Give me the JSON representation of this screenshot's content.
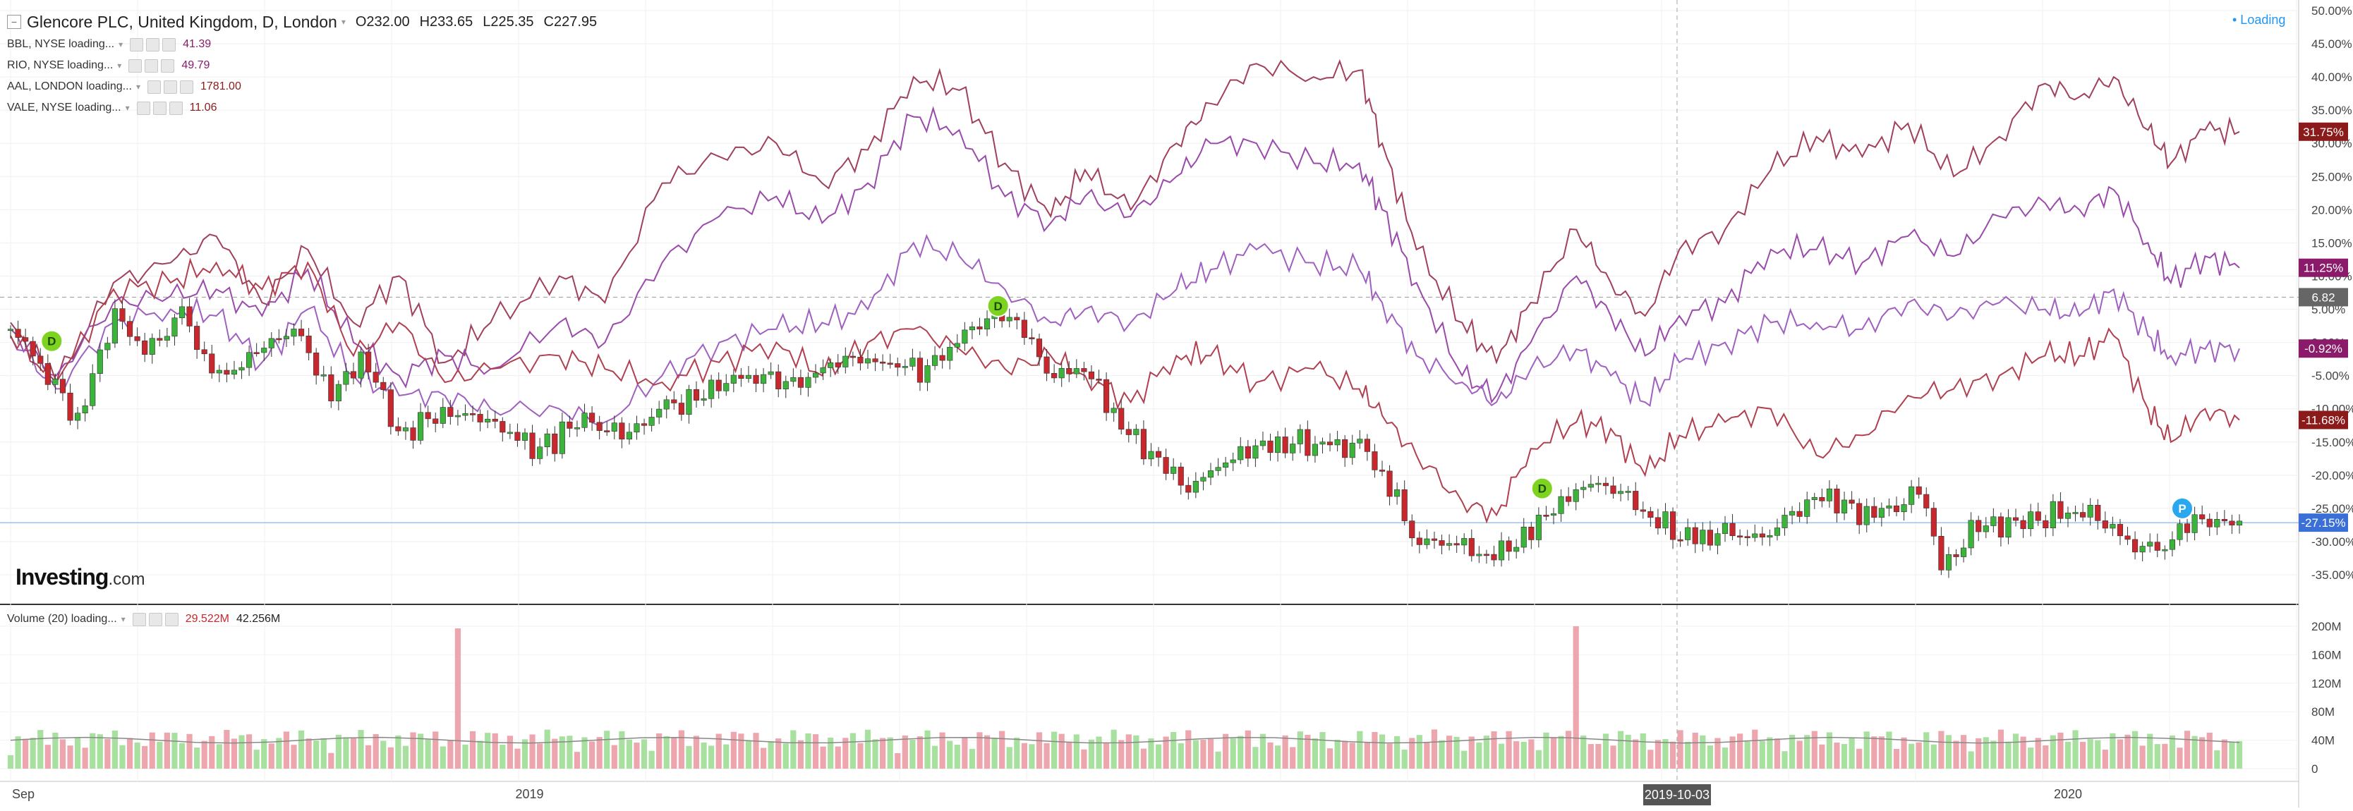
{
  "main_legend": {
    "symbol": "Glencore PLC, United Kingdom, D, London",
    "open": "232.00",
    "high": "233.65",
    "low": "225.35",
    "close": "227.95",
    "open_label": "O",
    "high_label": "H",
    "low_label": "L",
    "close_label": "C"
  },
  "compare_legend": [
    {
      "label": "BBL, NYSE loading...",
      "value": "41.39",
      "color": "#8b1a4a"
    },
    {
      "label": "RIO, NYSE loading...",
      "value": "49.79",
      "color": "#8b1a6a"
    },
    {
      "label": "AAL, LONDON loading...",
      "value": "1781.00",
      "color": "#8b1a1a"
    },
    {
      "label": "VALE, NYSE loading...",
      "value": "11.06",
      "color": "#8b1a1a"
    }
  ],
  "volume_legend": {
    "label": "Volume (20) loading...",
    "value1": "29.522M",
    "value2": "42.256M"
  },
  "status": "• Loading",
  "brand": {
    "name": "Investing",
    "suffix": ".com"
  },
  "chart_data": {
    "type": "line",
    "y_axis": {
      "ticks": [
        "50.00%",
        "45.00%",
        "40.00%",
        "35.00%",
        "30.00%",
        "25.00%",
        "20.00%",
        "15.00%",
        "10.00%",
        "5.00%",
        "0.00%",
        "-5.00%",
        "-10.00%",
        "-15.00%",
        "-20.00%",
        "-25.00%",
        "-30.00%",
        "-35.00%"
      ],
      "values": [
        50,
        45,
        40,
        35,
        30,
        25,
        20,
        15,
        10,
        5,
        0,
        -5,
        -10,
        -15,
        -20,
        -25,
        -30,
        -35
      ]
    },
    "x_axis": {
      "ticks": [
        "Sep",
        "2019",
        "2019-10-03",
        "2020"
      ],
      "tick_x": [
        0.0,
        0.227,
        0.729,
        0.9
      ]
    },
    "series": [
      {
        "key": "aal",
        "color": "#a0405a",
        "last": "31.75%",
        "last_value": 31.75,
        "label_bg": "#8b1a1a",
        "points": [
          [
            0,
            3
          ],
          [
            0.02,
            -6
          ],
          [
            0.045,
            9
          ],
          [
            0.07,
            12
          ],
          [
            0.09,
            16
          ],
          [
            0.11,
            6
          ],
          [
            0.13,
            14
          ],
          [
            0.15,
            3
          ],
          [
            0.17,
            10
          ],
          [
            0.19,
            -3
          ],
          [
            0.21,
            3
          ],
          [
            0.24,
            10
          ],
          [
            0.26,
            6
          ],
          [
            0.285,
            24
          ],
          [
            0.31,
            28
          ],
          [
            0.335,
            30
          ],
          [
            0.355,
            24
          ],
          [
            0.375,
            29
          ],
          [
            0.395,
            40
          ],
          [
            0.415,
            38
          ],
          [
            0.435,
            27
          ],
          [
            0.455,
            19
          ],
          [
            0.47,
            26
          ],
          [
            0.49,
            20
          ],
          [
            0.51,
            30
          ],
          [
            0.525,
            36
          ],
          [
            0.545,
            42
          ],
          [
            0.57,
            40
          ],
          [
            0.59,
            41
          ],
          [
            0.6,
            30
          ],
          [
            0.615,
            14
          ],
          [
            0.635,
            3
          ],
          [
            0.65,
            -3
          ],
          [
            0.665,
            6
          ],
          [
            0.685,
            17
          ],
          [
            0.7,
            9
          ],
          [
            0.715,
            4
          ],
          [
            0.73,
            14
          ],
          [
            0.75,
            17
          ],
          [
            0.77,
            26
          ],
          [
            0.79,
            31
          ],
          [
            0.81,
            28
          ],
          [
            0.83,
            33
          ],
          [
            0.85,
            25
          ],
          [
            0.87,
            31
          ],
          [
            0.89,
            39
          ],
          [
            0.905,
            37
          ],
          [
            0.92,
            40
          ],
          [
            0.935,
            32
          ],
          [
            0.945,
            27
          ],
          [
            0.96,
            32
          ],
          [
            0.975,
            31.75
          ]
        ]
      },
      {
        "key": "rio",
        "color": "#9a4aaa",
        "last": "11.25%",
        "last_value": 11.25,
        "label_bg": "#8b1a6a",
        "points": [
          [
            0,
            2
          ],
          [
            0.02,
            -5
          ],
          [
            0.045,
            6
          ],
          [
            0.07,
            7
          ],
          [
            0.09,
            8
          ],
          [
            0.11,
            4
          ],
          [
            0.13,
            11
          ],
          [
            0.15,
            0
          ],
          [
            0.17,
            -5
          ],
          [
            0.19,
            -2
          ],
          [
            0.21,
            -4
          ],
          [
            0.24,
            3
          ],
          [
            0.26,
            0
          ],
          [
            0.285,
            12
          ],
          [
            0.31,
            19
          ],
          [
            0.335,
            22
          ],
          [
            0.355,
            18
          ],
          [
            0.375,
            24
          ],
          [
            0.395,
            34
          ],
          [
            0.415,
            32
          ],
          [
            0.435,
            22
          ],
          [
            0.455,
            18
          ],
          [
            0.47,
            22
          ],
          [
            0.49,
            19
          ],
          [
            0.51,
            25
          ],
          [
            0.525,
            30
          ],
          [
            0.545,
            30
          ],
          [
            0.57,
            27
          ],
          [
            0.59,
            27
          ],
          [
            0.6,
            20
          ],
          [
            0.615,
            9
          ],
          [
            0.635,
            -5
          ],
          [
            0.65,
            -8
          ],
          [
            0.665,
            0
          ],
          [
            0.685,
            10
          ],
          [
            0.7,
            4
          ],
          [
            0.715,
            -2
          ],
          [
            0.73,
            4
          ],
          [
            0.75,
            6
          ],
          [
            0.77,
            14
          ],
          [
            0.79,
            14
          ],
          [
            0.81,
            12
          ],
          [
            0.83,
            16
          ],
          [
            0.85,
            13
          ],
          [
            0.87,
            19
          ],
          [
            0.89,
            21
          ],
          [
            0.905,
            20
          ],
          [
            0.92,
            23
          ],
          [
            0.935,
            15
          ],
          [
            0.945,
            9
          ],
          [
            0.96,
            13
          ],
          [
            0.975,
            11.25
          ]
        ]
      },
      {
        "key": "bbl",
        "color": "#a060c0",
        "last": "-0.92%",
        "last_value": -0.92,
        "label_bg": "#8b1a6a",
        "points": [
          [
            0,
            1
          ],
          [
            0.02,
            -7
          ],
          [
            0.045,
            3
          ],
          [
            0.07,
            5
          ],
          [
            0.09,
            4
          ],
          [
            0.11,
            -3
          ],
          [
            0.13,
            5
          ],
          [
            0.15,
            -5
          ],
          [
            0.17,
            -8
          ],
          [
            0.19,
            -8
          ],
          [
            0.21,
            -10
          ],
          [
            0.24,
            -10
          ],
          [
            0.26,
            -12
          ],
          [
            0.285,
            -5
          ],
          [
            0.31,
            0
          ],
          [
            0.335,
            2
          ],
          [
            0.355,
            3
          ],
          [
            0.375,
            5
          ],
          [
            0.395,
            15
          ],
          [
            0.415,
            13
          ],
          [
            0.435,
            8
          ],
          [
            0.455,
            3
          ],
          [
            0.47,
            5
          ],
          [
            0.49,
            3
          ],
          [
            0.51,
            8
          ],
          [
            0.525,
            11
          ],
          [
            0.545,
            14
          ],
          [
            0.57,
            12
          ],
          [
            0.59,
            11
          ],
          [
            0.6,
            6
          ],
          [
            0.615,
            -2
          ],
          [
            0.635,
            -6
          ],
          [
            0.65,
            -9
          ],
          [
            0.665,
            -4
          ],
          [
            0.685,
            -1
          ],
          [
            0.7,
            -5
          ],
          [
            0.715,
            -9
          ],
          [
            0.73,
            -3
          ],
          [
            0.75,
            0
          ],
          [
            0.77,
            3
          ],
          [
            0.79,
            3
          ],
          [
            0.81,
            2
          ],
          [
            0.83,
            6
          ],
          [
            0.85,
            4
          ],
          [
            0.87,
            6
          ],
          [
            0.89,
            5
          ],
          [
            0.905,
            4
          ],
          [
            0.92,
            8
          ],
          [
            0.935,
            1
          ],
          [
            0.945,
            -2
          ],
          [
            0.96,
            -1
          ],
          [
            0.975,
            -0.92
          ]
        ]
      },
      {
        "key": "vale",
        "color": "#b04050",
        "last": "-11.68%",
        "last_value": -11.68,
        "label_bg": "#8b1a1a",
        "points": [
          [
            0,
            1
          ],
          [
            0.02,
            -6
          ],
          [
            0.045,
            8
          ],
          [
            0.07,
            9
          ],
          [
            0.09,
            12
          ],
          [
            0.11,
            8
          ],
          [
            0.13,
            12
          ],
          [
            0.15,
            -2
          ],
          [
            0.17,
            3
          ],
          [
            0.19,
            -6
          ],
          [
            0.21,
            -4
          ],
          [
            0.24,
            -2
          ],
          [
            0.26,
            -4
          ],
          [
            0.285,
            -6
          ],
          [
            0.31,
            -3
          ],
          [
            0.335,
            0
          ],
          [
            0.355,
            -5
          ],
          [
            0.375,
            0
          ],
          [
            0.395,
            2
          ],
          [
            0.415,
            -1
          ],
          [
            0.435,
            -4
          ],
          [
            0.455,
            -2
          ],
          [
            0.47,
            -5
          ],
          [
            0.49,
            -9
          ],
          [
            0.51,
            -2
          ],
          [
            0.525,
            -2
          ],
          [
            0.545,
            -6
          ],
          [
            0.57,
            -4
          ],
          [
            0.59,
            -7
          ],
          [
            0.6,
            -11
          ],
          [
            0.615,
            -17
          ],
          [
            0.635,
            -24
          ],
          [
            0.65,
            -26
          ],
          [
            0.665,
            -16
          ],
          [
            0.685,
            -12
          ],
          [
            0.7,
            -13
          ],
          [
            0.715,
            -20
          ],
          [
            0.73,
            -14
          ],
          [
            0.75,
            -12
          ],
          [
            0.77,
            -10
          ],
          [
            0.79,
            -17
          ],
          [
            0.81,
            -14
          ],
          [
            0.83,
            -8
          ],
          [
            0.85,
            -7
          ],
          [
            0.87,
            -5
          ],
          [
            0.89,
            -2
          ],
          [
            0.905,
            -2
          ],
          [
            0.92,
            1
          ],
          [
            0.935,
            -10
          ],
          [
            0.945,
            -15
          ],
          [
            0.96,
            -10
          ],
          [
            0.975,
            -11.68
          ]
        ]
      }
    ],
    "price_series": {
      "color_up": "#3cb43c",
      "color_down": "#c8282d",
      "last": "6.82",
      "last_value": 6.82,
      "pct_last": "-27.15%",
      "pct_last_value": -27.15,
      "points": [
        [
          0,
          2
        ],
        [
          0.015,
          -4
        ],
        [
          0.03,
          -12
        ],
        [
          0.045,
          5
        ],
        [
          0.06,
          -2
        ],
        [
          0.075,
          5
        ],
        [
          0.09,
          -6
        ],
        [
          0.11,
          -1
        ],
        [
          0.125,
          2
        ],
        [
          0.14,
          -8
        ],
        [
          0.155,
          -2
        ],
        [
          0.17,
          -14
        ],
        [
          0.19,
          -10
        ],
        [
          0.21,
          -12
        ],
        [
          0.23,
          -16
        ],
        [
          0.25,
          -12
        ],
        [
          0.27,
          -14
        ],
        [
          0.285,
          -10
        ],
        [
          0.3,
          -8
        ],
        [
          0.32,
          -5
        ],
        [
          0.345,
          -6
        ],
        [
          0.365,
          -2
        ],
        [
          0.38,
          -3
        ],
        [
          0.4,
          -4
        ],
        [
          0.415,
          0
        ],
        [
          0.43,
          5
        ],
        [
          0.44,
          3
        ],
        [
          0.455,
          -5
        ],
        [
          0.47,
          -4
        ],
        [
          0.485,
          -12
        ],
        [
          0.5,
          -17
        ],
        [
          0.515,
          -22
        ],
        [
          0.53,
          -18
        ],
        [
          0.545,
          -16
        ],
        [
          0.56,
          -15
        ],
        [
          0.575,
          -16
        ],
        [
          0.59,
          -15
        ],
        [
          0.6,
          -20
        ],
        [
          0.615,
          -30
        ],
        [
          0.63,
          -30
        ],
        [
          0.645,
          -32
        ],
        [
          0.66,
          -30
        ],
        [
          0.675,
          -25
        ],
        [
          0.69,
          -21
        ],
        [
          0.705,
          -23
        ],
        [
          0.72,
          -27
        ],
        [
          0.735,
          -30
        ],
        [
          0.75,
          -28
        ],
        [
          0.765,
          -30
        ],
        [
          0.78,
          -25
        ],
        [
          0.795,
          -23
        ],
        [
          0.81,
          -26
        ],
        [
          0.825,
          -25
        ],
        [
          0.835,
          -22
        ],
        [
          0.845,
          -34
        ],
        [
          0.86,
          -28
        ],
        [
          0.88,
          -27
        ],
        [
          0.895,
          -26
        ],
        [
          0.91,
          -25
        ],
        [
          0.925,
          -30
        ],
        [
          0.94,
          -31
        ],
        [
          0.955,
          -27
        ],
        [
          0.975,
          -27.15
        ]
      ]
    },
    "volume": {
      "ticks": [
        "200M",
        "160M",
        "120M",
        "80M",
        "40M",
        "0"
      ],
      "tick_values": [
        200,
        160,
        120,
        80,
        40,
        0
      ],
      "spikes": [
        [
          0.195,
          197
        ],
        [
          0.685,
          200
        ]
      ],
      "avg_level": 40,
      "base_level": 38
    },
    "event_markers": [
      {
        "label": "D",
        "x": 0.018,
        "y": 0.2,
        "color": "#7ed321"
      },
      {
        "label": "D",
        "x": 0.432,
        "y": 5.5,
        "color": "#7ed321"
      },
      {
        "label": "D",
        "x": 0.67,
        "y": -22,
        "color": "#7ed321"
      },
      {
        "label": "P",
        "x": 0.95,
        "y": -25,
        "color": "#29a8f0"
      }
    ]
  }
}
